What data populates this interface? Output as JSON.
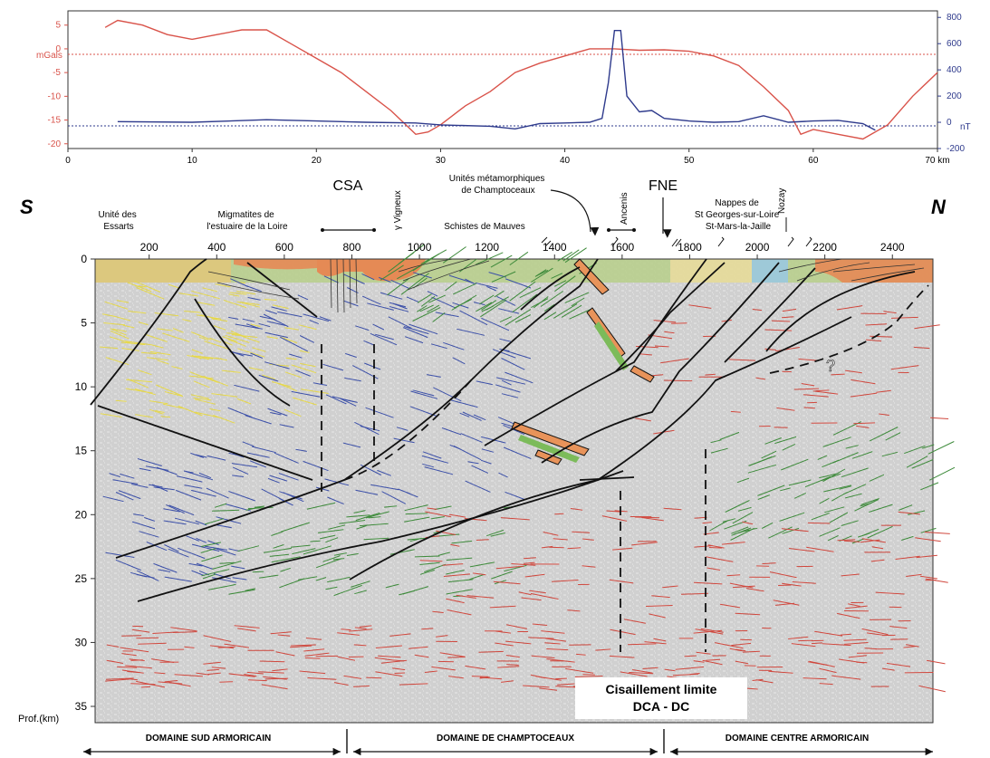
{
  "colors": {
    "gravity": "#d9534a",
    "magnetic": "#2e3a8c",
    "fault": "#111111",
    "refl_blue": "#3b4fa8",
    "refl_green": "#3d8a3a",
    "refl_red": "#d0473d",
    "refl_yellow": "#e6d84a",
    "orange_band": "#e8935a",
    "green_band": "#7cbb5a"
  },
  "profile": {
    "left_unit": "mGals",
    "right_unit": "nT",
    "x_unit": "km",
    "y_left_ticks": [
      "5",
      "0",
      "-5",
      "-10",
      "-15",
      "-20"
    ],
    "y_right_ticks": [
      "800",
      "600",
      "400",
      "200",
      "0",
      "-200"
    ],
    "x_ticks": [
      "0",
      "10",
      "20",
      "30",
      "40",
      "50",
      "60",
      "70"
    ]
  },
  "chart_data": {
    "type": "line",
    "xlabel": "km",
    "x_range": [
      0,
      70
    ],
    "series": [
      {
        "name": "",
        "axis": "left (mGals)",
        "ylim": [
          -21,
          8
        ],
        "x": [
          3,
          4,
          6,
          8,
          10,
          12,
          14,
          16,
          18,
          20,
          22,
          24,
          26,
          28,
          29,
          30,
          32,
          34,
          36,
          38,
          40,
          42,
          44,
          46,
          48,
          50,
          52,
          54,
          56,
          58,
          59,
          60,
          62,
          64,
          66,
          68,
          70
        ],
        "y": [
          4.5,
          6,
          5,
          3,
          2,
          3,
          4,
          4,
          1,
          -2,
          -5,
          -9,
          -13,
          -18,
          -17.5,
          -16,
          -12,
          -9,
          -5,
          -3,
          -1.5,
          0,
          0,
          -0.3,
          -0.2,
          -0.5,
          -1.5,
          -3.5,
          -8,
          -13,
          -18,
          -17,
          -18,
          -19,
          -16,
          -10,
          -5
        ]
      },
      {
        "name": "",
        "axis": "right (nT)",
        "ylim": [
          -200,
          850
        ],
        "x": [
          4,
          10,
          16,
          20,
          24,
          28,
          30,
          34,
          36,
          38,
          40,
          42,
          43,
          43.5,
          44,
          44.5,
          45,
          46,
          47,
          48,
          50,
          52,
          54,
          56,
          58,
          60,
          62,
          64,
          65
        ],
        "y": [
          5,
          0,
          20,
          10,
          0,
          -5,
          -20,
          -30,
          -50,
          -10,
          -5,
          0,
          30,
          300,
          700,
          700,
          200,
          80,
          90,
          30,
          10,
          0,
          5,
          50,
          0,
          10,
          15,
          -10,
          -60
        ]
      }
    ]
  },
  "section": {
    "letter_s": "S",
    "letter_n": "N",
    "csa": "CSA",
    "fne": "FNE",
    "labels": {
      "essarts": [
        "Unité des",
        "Essarts"
      ],
      "migmatites": [
        "Migmatites de",
        "l'estuaire de la Loire"
      ],
      "vigneux": "γ Vigneux",
      "schistes": "Schistes de Mauves",
      "unites_meta": [
        "Unités métamorphiques",
        "de Champtoceaux"
      ],
      "ancenis": "Ancenis",
      "nappes": [
        "Nappes de",
        "St Georges-sur-Loire",
        "St-Mars-la-Jaille"
      ],
      "nozay": "Nozay",
      "question": "?"
    },
    "x_ticks": [
      "200",
      "400",
      "600",
      "800",
      "1000",
      "1200",
      "1400",
      "1600",
      "1800",
      "2000",
      "2200",
      "2400"
    ],
    "depth_ticks": [
      "0",
      "5",
      "10",
      "15",
      "20",
      "25",
      "30",
      "35"
    ],
    "depth_unit": "Prof.(km)",
    "callout": [
      "Cisaillement limite",
      "DCA - DC"
    ]
  },
  "domains": [
    {
      "label": "DOMAINE SUD ARMORICAIN"
    },
    {
      "label": "DOMAINE DE CHAMPTOCEAUX"
    },
    {
      "label": "DOMAINE CENTRE ARMORICAIN"
    }
  ]
}
